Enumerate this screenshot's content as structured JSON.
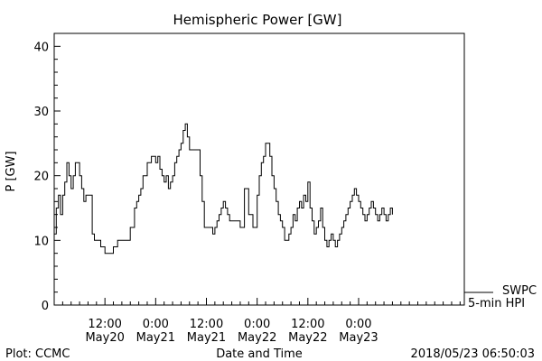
{
  "chart_data": {
    "type": "line",
    "title": "Hemispheric Power [GW]",
    "ylabel": "P [GW]",
    "xlabel": "Date and Time",
    "ylim": [
      0,
      42
    ],
    "yticks": [
      0,
      10,
      20,
      30,
      40
    ],
    "xlim_hours": [
      0,
      97
    ],
    "xticks": [
      {
        "time": "12:00",
        "date": "May20",
        "hour": 12
      },
      {
        "time": "0:00",
        "date": "May21",
        "hour": 24
      },
      {
        "time": "12:00",
        "date": "May21",
        "hour": 36
      },
      {
        "time": "0:00",
        "date": "May22",
        "hour": 48
      },
      {
        "time": "12:00",
        "date": "May22",
        "hour": 60
      },
      {
        "time": "0:00",
        "date": "May23",
        "hour": 72
      }
    ],
    "grid": false,
    "legend_position": "right",
    "series": [
      {
        "name": "SWPC 5-min HPI",
        "x": [
          0,
          0.5,
          1,
          1.5,
          2,
          2.5,
          3,
          3.5,
          4,
          4.5,
          5,
          5.5,
          6,
          6.5,
          7,
          7.5,
          8,
          8.5,
          9,
          9.5,
          10,
          11,
          12,
          13,
          14,
          15,
          16,
          17,
          18,
          19,
          19.5,
          20,
          20.5,
          21,
          22,
          23,
          24,
          24.5,
          25,
          25.5,
          26,
          26.5,
          27,
          27.5,
          28,
          28.5,
          29,
          29.5,
          30,
          30.5,
          31,
          31.5,
          32,
          32.5,
          33,
          33.5,
          34,
          34.5,
          35,
          35.5,
          36,
          36.5,
          37,
          37.5,
          38,
          38.5,
          39,
          39.5,
          40,
          40.5,
          41,
          41.5,
          42,
          43,
          44,
          45,
          46,
          47,
          48,
          48.5,
          49,
          49.5,
          50,
          50.5,
          51,
          51.5,
          52,
          52.5,
          53,
          53.5,
          54,
          54.5,
          55,
          55.5,
          56,
          56.5,
          57,
          57.5,
          58,
          58.5,
          59,
          59.5,
          60,
          60.5,
          61,
          61.5,
          62,
          62.5,
          63,
          63.5,
          64,
          64.5,
          65,
          65.5,
          66,
          66.5,
          67,
          67.5,
          68,
          68.5,
          69,
          69.5,
          70,
          70.5,
          71,
          71.5,
          72,
          72.5,
          73,
          73.5,
          74,
          74.5,
          75,
          75.5,
          76,
          76.5,
          77,
          77.5,
          78,
          78.5,
          79,
          79.5,
          80
        ],
        "values": [
          11,
          15,
          17,
          14,
          17,
          19,
          22,
          20,
          18,
          20,
          22,
          22,
          20,
          18,
          16,
          17,
          17,
          17,
          11,
          10,
          10,
          9,
          8,
          8,
          9,
          10,
          10,
          10,
          12,
          15,
          16,
          17,
          18,
          20,
          22,
          23,
          22,
          23,
          21,
          20,
          19,
          20,
          18,
          19,
          20,
          22,
          23,
          24,
          25,
          27,
          28,
          26,
          24,
          24,
          24,
          24,
          24,
          20,
          16,
          12,
          12,
          12,
          12,
          11,
          12,
          13,
          14,
          15,
          16,
          15,
          14,
          13,
          13,
          13,
          12,
          18,
          14,
          12,
          17,
          20,
          22,
          23,
          25,
          25,
          23,
          20,
          18,
          16,
          14,
          13,
          12,
          10,
          10,
          11,
          12,
          14,
          13,
          15,
          16,
          15,
          17,
          16,
          19,
          15,
          13,
          11,
          12,
          13,
          15,
          12,
          10,
          9,
          10,
          11,
          10,
          9,
          10,
          11,
          12,
          13,
          14,
          15,
          16,
          17,
          18,
          17,
          16,
          15,
          14,
          13,
          14,
          15,
          16,
          15,
          14,
          13,
          14,
          15,
          14,
          13,
          14,
          15,
          14
        ]
      }
    ],
    "annotations": {
      "legend_line1": "SWPC",
      "legend_line2": "5-min HPI",
      "plot_credit": "Plot: CCMC",
      "timestamp": "2018/05/23 06:50:03"
    }
  }
}
